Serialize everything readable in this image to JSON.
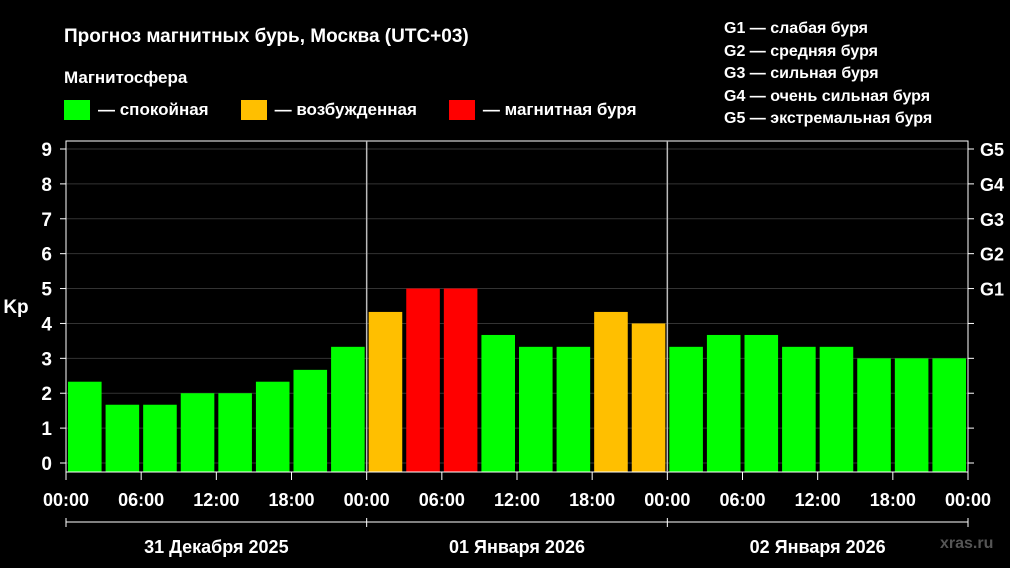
{
  "header": {
    "title": "Прогноз магнитных бурь, Москва (UTC+03)",
    "subtitle": "Магнитосфера"
  },
  "legend": [
    {
      "label": "— спокойная",
      "color": "#00ff00"
    },
    {
      "label": "— возбужденная",
      "color": "#ffbf00"
    },
    {
      "label": "— магнитная буря",
      "color": "#ff0000"
    }
  ],
  "g_legend": [
    "G1 — слабая буря",
    "G2 — средняя буря",
    "G3 — сильная буря",
    "G4 — очень сильная буря",
    "G5 — экстремальная буря"
  ],
  "watermark": "xras.ru",
  "chart_data": {
    "type": "bar",
    "ylabel": "Kp",
    "ylim": [
      0,
      9
    ],
    "y_ticks": [
      "0",
      "1",
      "2",
      "3",
      "4",
      "5",
      "6",
      "7",
      "8",
      "9"
    ],
    "g_ticks": [
      {
        "value": 5,
        "label": "G1"
      },
      {
        "value": 6,
        "label": "G2"
      },
      {
        "value": 7,
        "label": "G3"
      },
      {
        "value": 8,
        "label": "G4"
      },
      {
        "value": 9,
        "label": "G5"
      }
    ],
    "x_tick_labels": [
      "00:00",
      "06:00",
      "12:00",
      "18:00",
      "00:00",
      "06:00",
      "12:00",
      "18:00",
      "00:00",
      "06:00",
      "12:00",
      "18:00",
      "00:00"
    ],
    "days": [
      "31 Декабря 2025",
      "01 Января 2026",
      "02 Января 2026"
    ],
    "bars_per_day": 8,
    "values": [
      2.33,
      1.67,
      1.67,
      2.0,
      2.0,
      2.33,
      2.67,
      3.33,
      4.33,
      5.0,
      5.0,
      3.67,
      3.33,
      3.33,
      4.33,
      4.0,
      3.33,
      3.67,
      3.67,
      3.33,
      3.33,
      3.0,
      3.0,
      3.0
    ],
    "levels": [
      "calm",
      "calm",
      "calm",
      "calm",
      "calm",
      "calm",
      "calm",
      "calm",
      "excited",
      "storm",
      "storm",
      "calm",
      "calm",
      "calm",
      "excited",
      "excited",
      "calm",
      "calm",
      "calm",
      "calm",
      "calm",
      "calm",
      "calm",
      "calm"
    ],
    "level_colors": {
      "calm": "#00ff00",
      "excited": "#ffbf00",
      "storm": "#ff0000"
    },
    "grid": true
  }
}
